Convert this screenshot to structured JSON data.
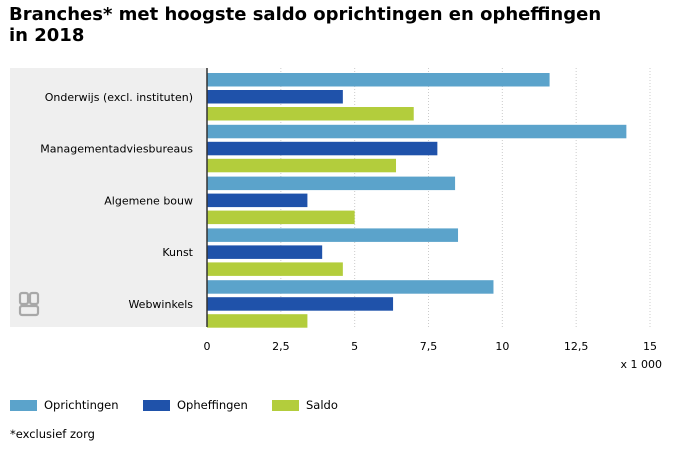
{
  "title": "Branches* met hoogste saldo oprichtingen en opheffingen in 2018",
  "footnote": "*exclusief zorg",
  "colors": {
    "oprichtingen": "#5ba3cb",
    "opheffingen": "#1f52aa",
    "saldo": "#b3cd3c",
    "band": "#efefef",
    "grid": "#cccccc"
  },
  "chart_data": {
    "type": "bar",
    "orientation": "horizontal",
    "categories": [
      "Onderwijs (excl. instituten)",
      "Managementadviesbureaus",
      "Algemene bouw",
      "Kunst",
      "Webwinkels"
    ],
    "series": [
      {
        "name": "Oprichtingen",
        "values": [
          11.6,
          14.2,
          8.4,
          8.5,
          9.7
        ]
      },
      {
        "name": "Opheffingen",
        "values": [
          4.6,
          7.8,
          3.4,
          3.9,
          6.3
        ]
      },
      {
        "name": "Saldo",
        "values": [
          7.0,
          6.4,
          5.0,
          4.6,
          3.4
        ]
      }
    ],
    "xlim": [
      0,
      15
    ],
    "xticks": [
      "0",
      "2,5",
      "5",
      "7,5",
      "10",
      "12,5",
      "15"
    ],
    "xtick_values": [
      0,
      2.5,
      5,
      7.5,
      10,
      12.5,
      15
    ],
    "xunit": "x 1 000",
    "grid": true,
    "legend_position": "bottom-left"
  }
}
